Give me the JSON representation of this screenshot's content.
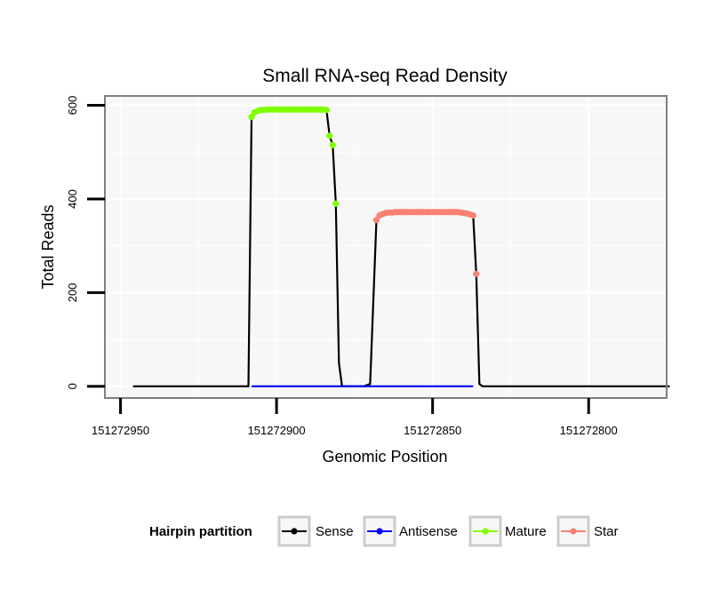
{
  "chart_data": {
    "type": "line",
    "title": "Small RNA-seq Read Density",
    "xlabel": "Genomic Position",
    "ylabel": "Total Reads",
    "x_reversed": true,
    "xlim": [
      151272955,
      151272775
    ],
    "ylim": [
      -25,
      620
    ],
    "x_ticks": [
      151272950,
      151272900,
      151272850,
      151272800
    ],
    "x_tick_labels": [
      "151272950",
      "151272900",
      "151272850",
      "151272800"
    ],
    "y_ticks": [
      0,
      200,
      400,
      600
    ],
    "y_tick_labels": [
      "0",
      "200",
      "400",
      "600"
    ],
    "grid": true,
    "legend": {
      "title": "Hairpin partition",
      "placement": "bottom",
      "entries": [
        "Sense",
        "Antisense",
        "Mature",
        "Star"
      ]
    },
    "colors": {
      "Sense": "#000000",
      "Antisense": "#0000ff",
      "Mature": "#7fff00",
      "Star": "#fa8072",
      "panel_bg": "#f7f7f7",
      "grid": "#ffffff",
      "border": "#7f7f7f"
    },
    "series": [
      {
        "name": "Sense",
        "type": "line",
        "x": [
          151272946,
          151272909,
          151272908,
          151272907,
          151272906,
          151272905,
          151272900,
          151272890,
          151272885,
          151272884,
          151272883,
          151272882,
          151272881,
          151272880,
          151272879,
          151272877,
          151272872,
          151272870,
          151272868,
          151272867,
          151272866,
          151272865,
          151272860,
          151272850,
          151272840,
          151272838,
          151272837,
          151272836,
          151272835,
          151272834,
          151272832,
          151272774
        ],
        "y": [
          0,
          0,
          575,
          585,
          588,
          590,
          591,
          591,
          591,
          590,
          535,
          515,
          390,
          50,
          0,
          0,
          0,
          5,
          355,
          365,
          368,
          370,
          372,
          372,
          372,
          370,
          365,
          240,
          5,
          0,
          0,
          0
        ]
      },
      {
        "name": "Antisense",
        "type": "line",
        "x": [
          151272908,
          151272837
        ],
        "y": [
          0,
          0
        ]
      },
      {
        "name": "Mature",
        "type": "points",
        "x": [
          151272908,
          151272907,
          151272906,
          151272905,
          151272904,
          151272903,
          151272902,
          151272901,
          151272900,
          151272899,
          151272898,
          151272897,
          151272896,
          151272895,
          151272894,
          151272893,
          151272892,
          151272891,
          151272890,
          151272889,
          151272888,
          151272887,
          151272886,
          151272885,
          151272884,
          151272883,
          151272882,
          151272881
        ],
        "y": [
          575,
          585,
          588,
          590,
          590,
          591,
          591,
          591,
          591,
          591,
          591,
          591,
          591,
          591,
          591,
          591,
          591,
          591,
          591,
          591,
          591,
          591,
          591,
          591,
          590,
          535,
          515,
          390
        ]
      },
      {
        "name": "Star",
        "type": "points",
        "x": [
          151272868,
          151272867,
          151272866,
          151272865,
          151272864,
          151272863,
          151272862,
          151272861,
          151272860,
          151272859,
          151272858,
          151272857,
          151272856,
          151272855,
          151272854,
          151272853,
          151272852,
          151272851,
          151272850,
          151272849,
          151272848,
          151272847,
          151272846,
          151272845,
          151272844,
          151272843,
          151272842,
          151272841,
          151272840,
          151272839,
          151272838,
          151272837,
          151272836
        ],
        "y": [
          355,
          365,
          368,
          370,
          371,
          371,
          372,
          372,
          372,
          372,
          372,
          372,
          372,
          372,
          372,
          372,
          372,
          372,
          372,
          372,
          372,
          372,
          372,
          372,
          372,
          372,
          372,
          371,
          370,
          369,
          367,
          365,
          240
        ]
      }
    ]
  }
}
